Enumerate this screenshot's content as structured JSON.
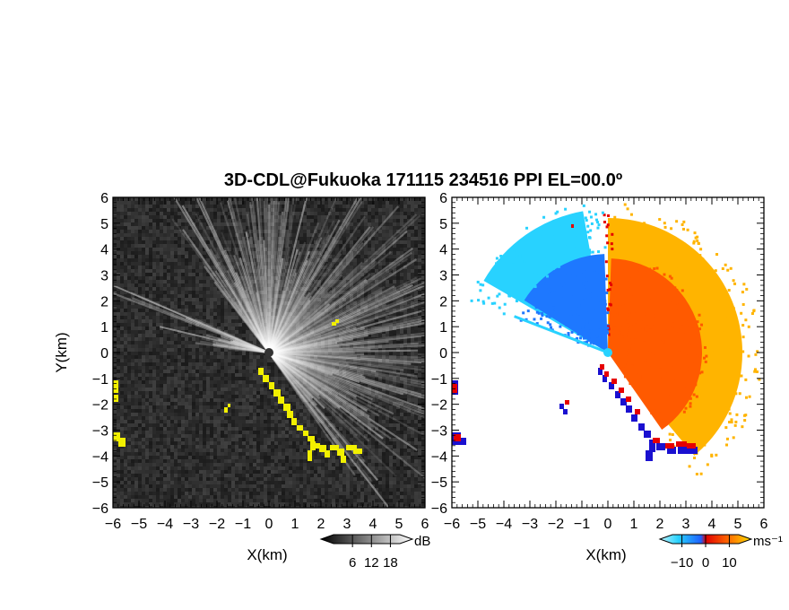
{
  "title": "3D-CDL@Fukuoka 171115 234516 PPI EL=00.0º",
  "chart_data": [
    {
      "type": "heatmap",
      "panel": "left",
      "xlabel": "X(km)",
      "ylabel": "Y(km)",
      "xlim": [
        -6,
        6
      ],
      "ylim": [
        -6,
        6
      ],
      "x_ticks": [
        "−6",
        "−5",
        "−4",
        "−3",
        "−2",
        "−1",
        "0",
        "1",
        "2",
        "3",
        "4",
        "5",
        "6"
      ],
      "y_ticks": [
        "6",
        "5",
        "4",
        "3",
        "2",
        "1",
        "0",
        "−1",
        "−2",
        "−3",
        "−4",
        "−5",
        "−6"
      ],
      "colorbar": {
        "unit": "dB",
        "tick_labels": [
          "6",
          "12",
          "18"
        ],
        "ticks": [
          6,
          12,
          18
        ],
        "range": [
          0,
          21
        ]
      },
      "background_color": "#2e2e2e",
      "highlight_color": "#f2f000"
    },
    {
      "type": "heatmap",
      "panel": "right",
      "xlabel": "X(km)",
      "ylabel": "",
      "xlim": [
        -6,
        6
      ],
      "ylim": [
        -6,
        6
      ],
      "x_ticks": [
        "−6",
        "−5",
        "−4",
        "−3",
        "−2",
        "−1",
        "0",
        "1",
        "2",
        "3",
        "4",
        "5",
        "6"
      ],
      "y_ticks": [
        "6",
        "5",
        "4",
        "3",
        "2",
        "1",
        "0",
        "−1",
        "−2",
        "−3",
        "−4",
        "−5",
        "−6"
      ],
      "colorbar": {
        "unit": "ms⁻¹",
        "tick_labels": [
          "−10",
          "0",
          "10"
        ],
        "ticks": [
          -10,
          0,
          10
        ],
        "range": [
          -14,
          14
        ]
      },
      "colors": {
        "toward": "#1e78ff",
        "away": "#ff5a00",
        "far_toward": "#28d2ff",
        "far_away": "#ffb400",
        "edge_pos": "#e60000",
        "edge_neg": "#1a10d0"
      }
    }
  ]
}
